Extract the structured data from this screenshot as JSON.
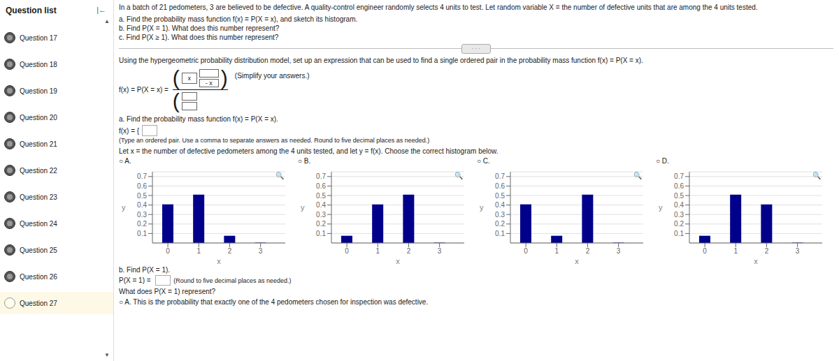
{
  "sidebar": {
    "title": "Question list",
    "categories": [
      "Question 17",
      "Question 18",
      "Question 19",
      "Question 20",
      "Question 21",
      "Question 22",
      "Question 23",
      "Question 24",
      "Question 25",
      "Question 26",
      "Question 27"
    ],
    "annotations": [
      "|←",
      "▲",
      "▼"
    ]
  },
  "annotations": [
    "In a batch of 21 pedometers, 3 are believed to be defective. A quality-control engineer randomly selects 4 units to test. Let random variable X = the number of defective units that are among the 4 units tested.",
    "a.  Find the probability mass function f(x) = P(X = x), and sketch its histogram.",
    "b.  Find P(X = 1). What does this number represent?",
    "c.  Find P(X ≥ 1). What does this number represent?",
    "· · ·",
    "Using the hypergeometric probability distribution model, set up an expression that can be used to find a single ordered pair in the probability mass function f(x) = P(X = x).",
    "f(x) = P(X = x) =",
    "(",
    "x",
    "- x",
    ")",
    "(Simplify your answers.)",
    "(",
    "a.  Find the probability mass function f(x) = P(X = x).",
    "f(x) = {",
    "(Type an ordered pair. Use a comma to separate answers as needed. Round to five decimal places as needed.)",
    "Let x = the number of defective pedometers among the 4 units tested, and let y = f(x).  Choose the correct histogram below."
  ],
  "chart_data": [
    {
      "type": "bar",
      "title": "○ A.",
      "x": [
        0,
        1,
        2,
        3
      ],
      "values": [
        0.407,
        0.51,
        0.076,
        0.004
      ],
      "color": "#00008b",
      "xlim": [
        -0.5,
        3.8
      ],
      "xticks": [
        0,
        1,
        2,
        3
      ],
      "ylim": [
        0,
        0.75
      ],
      "yticks": [
        0.1,
        0.2,
        0.3,
        0.4,
        0.5,
        0.6,
        0.7
      ],
      "grid": true,
      "x_label": "x",
      "y_label": "y",
      "annotations": [
        "🔍"
      ]
    },
    {
      "type": "bar",
      "title": "○ B.",
      "x": [
        0,
        1,
        2,
        3
      ],
      "values": [
        0.076,
        0.407,
        0.51,
        0.004
      ],
      "color": "#00008b",
      "xlim": [
        -0.5,
        3.8
      ],
      "xticks": [
        0,
        1,
        2,
        3
      ],
      "ylim": [
        0,
        0.75
      ],
      "yticks": [
        0.1,
        0.2,
        0.3,
        0.4,
        0.5,
        0.6,
        0.7
      ],
      "grid": true,
      "x_label": "x",
      "y_label": "y",
      "annotations": [
        "🔍"
      ]
    },
    {
      "type": "bar",
      "title": "○ C.",
      "x": [
        0,
        1,
        2,
        3
      ],
      "values": [
        0.407,
        0.076,
        0.51,
        0.004
      ],
      "color": "#00008b",
      "xlim": [
        -0.5,
        3.8
      ],
      "xticks": [
        0,
        1,
        2,
        3
      ],
      "ylim": [
        0,
        0.75
      ],
      "yticks": [
        0.1,
        0.2,
        0.3,
        0.4,
        0.5,
        0.6,
        0.7
      ],
      "grid": true,
      "x_label": "x",
      "y_label": "y",
      "annotations": [
        "🔍"
      ]
    },
    {
      "type": "bar",
      "title": "○ D.",
      "x": [
        0,
        1,
        2,
        3
      ],
      "values": [
        0.076,
        0.51,
        0.407,
        0.004
      ],
      "color": "#00008b",
      "xlim": [
        -0.5,
        3.8
      ],
      "xticks": [
        0,
        1,
        2,
        3
      ],
      "ylim": [
        0,
        0.75
      ],
      "yticks": [
        0.1,
        0.2,
        0.3,
        0.4,
        0.5,
        0.6,
        0.7
      ],
      "grid": true,
      "x_label": "x",
      "y_label": "y",
      "annotations": [
        "🔍"
      ]
    }
  ],
  "annotations_below": [
    "b.  Find P(X = 1).",
    "P(X = 1) = ",
    "(Round to five decimal places as needed.)",
    "What does P(X = 1) represent?",
    "○  A.  This is the probability that exactly one of the 4 pedometers chosen for inspection was defective."
  ]
}
